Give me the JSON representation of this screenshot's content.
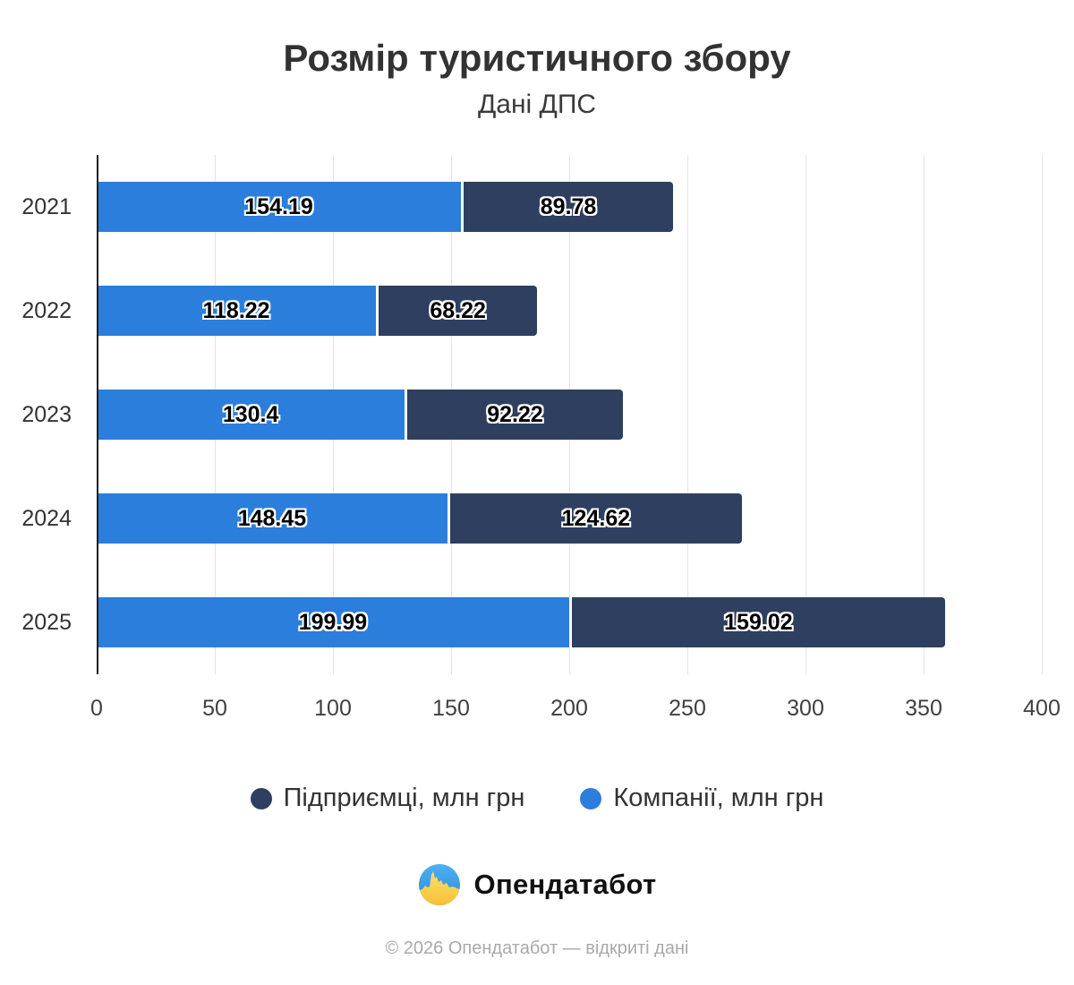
{
  "title": "Розмір туристичного збору",
  "subtitle": "Дані ДПС",
  "chart_data": {
    "type": "bar",
    "orientation": "horizontal",
    "stacked": true,
    "title": "Розмір туристичного збору",
    "subtitle": "Дані ДПС",
    "categories": [
      "2021",
      "2022",
      "2023",
      "2024",
      "2025"
    ],
    "series": [
      {
        "name": "Компанії, млн грн",
        "color": "#2b7edb",
        "values": [
          154.19,
          118.22,
          130.4,
          148.45,
          199.99
        ]
      },
      {
        "name": "Підприємці, млн грн",
        "color": "#2f3f5f",
        "values": [
          89.78,
          68.22,
          92.22,
          124.62,
          159.02
        ]
      }
    ],
    "totals": [
      243.97,
      186.44,
      222.62,
      273.07,
      359.01
    ],
    "xlim": [
      0,
      400
    ],
    "x_ticks": [
      0,
      50,
      100,
      150,
      200,
      250,
      300,
      350,
      400
    ],
    "grid": "vertical",
    "legend_position": "bottom",
    "value_labels": "inside"
  },
  "legend": {
    "items": [
      {
        "label": "Підприємці, млн грн",
        "color": "#2f3f5f"
      },
      {
        "label": "Компанії, млн грн",
        "color": "#2b7edb"
      }
    ]
  },
  "footer": {
    "brand": "Опендатабот",
    "logo_icon": "opendatabot-logo",
    "copyright": "© 2026 Опендатабот — відкриті дані"
  },
  "colors": {
    "companies": "#2b7edb",
    "entrepreneurs": "#2f3f5f",
    "grid": "#e4e4e4",
    "axis": "#1f1f1f",
    "title_text": "#323232",
    "copyright_text": "#a9a9a9"
  }
}
